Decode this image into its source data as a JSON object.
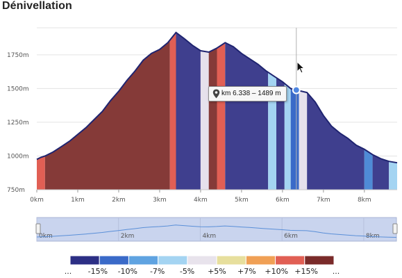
{
  "title": "Dénivellation",
  "tooltip": {
    "text": "km 6.338 – 1489 m",
    "icon": "map-pin-icon"
  },
  "chart_data": {
    "type": "area",
    "title": "Dénivellation",
    "xlabel": "",
    "ylabel": "",
    "xlim": [
      0,
      8.8
    ],
    "ylim": [
      750,
      1950
    ],
    "y_ticks": [
      {
        "v": 750,
        "label": "750m"
      },
      {
        "v": 1000,
        "label": "1000m"
      },
      {
        "v": 1250,
        "label": "1250m"
      },
      {
        "v": 1500,
        "label": "1500m"
      },
      {
        "v": 1750,
        "label": "1750m"
      }
    ],
    "x_ticks": [
      {
        "v": 0,
        "label": "0km"
      },
      {
        "v": 1,
        "label": "1km"
      },
      {
        "v": 2,
        "label": "2km"
      },
      {
        "v": 3,
        "label": "3km"
      },
      {
        "v": 4,
        "label": "4km"
      },
      {
        "v": 5,
        "label": "5km"
      },
      {
        "v": 6,
        "label": "6km"
      },
      {
        "v": 7,
        "label": "7km"
      },
      {
        "v": 8,
        "label": "8km"
      }
    ],
    "nav_ticks": [
      {
        "v": 0,
        "label": "0km"
      },
      {
        "v": 2,
        "label": "2km"
      },
      {
        "v": 4,
        "label": "4km"
      },
      {
        "v": 6,
        "label": "6km"
      },
      {
        "v": 8,
        "label": "8km"
      }
    ],
    "grid": true,
    "profile": [
      [
        0,
        975
      ],
      [
        0.1,
        990
      ],
      [
        0.2,
        1000
      ],
      [
        0.4,
        1030
      ],
      [
        0.6,
        1070
      ],
      [
        0.8,
        1110
      ],
      [
        1.0,
        1160
      ],
      [
        1.2,
        1210
      ],
      [
        1.4,
        1270
      ],
      [
        1.6,
        1330
      ],
      [
        1.8,
        1410
      ],
      [
        2.0,
        1480
      ],
      [
        2.2,
        1560
      ],
      [
        2.4,
        1630
      ],
      [
        2.6,
        1710
      ],
      [
        2.8,
        1760
      ],
      [
        3.0,
        1790
      ],
      [
        3.2,
        1840
      ],
      [
        3.4,
        1915
      ],
      [
        3.6,
        1870
      ],
      [
        3.8,
        1820
      ],
      [
        4.0,
        1780
      ],
      [
        4.2,
        1770
      ],
      [
        4.4,
        1800
      ],
      [
        4.6,
        1840
      ],
      [
        4.8,
        1810
      ],
      [
        5.0,
        1760
      ],
      [
        5.2,
        1720
      ],
      [
        5.4,
        1680
      ],
      [
        5.6,
        1630
      ],
      [
        5.8,
        1590
      ],
      [
        6.0,
        1550
      ],
      [
        6.2,
        1500
      ],
      [
        6.338,
        1489
      ],
      [
        6.6,
        1470
      ],
      [
        6.8,
        1400
      ],
      [
        7.0,
        1300
      ],
      [
        7.2,
        1220
      ],
      [
        7.4,
        1170
      ],
      [
        7.6,
        1130
      ],
      [
        7.8,
        1080
      ],
      [
        8.0,
        1050
      ],
      [
        8.2,
        1010
      ],
      [
        8.4,
        980
      ],
      [
        8.6,
        960
      ],
      [
        8.8,
        950
      ]
    ],
    "segments": [
      {
        "x0": 0,
        "x1": 0.2,
        "c": "#e15f54"
      },
      {
        "x0": 0.2,
        "x1": 3.25,
        "c": "#853a38"
      },
      {
        "x0": 3.25,
        "x1": 3.4,
        "c": "#e15f54"
      },
      {
        "x0": 3.4,
        "x1": 4.0,
        "c": "#3f3f8e"
      },
      {
        "x0": 4.0,
        "x1": 4.2,
        "c": "#e6e1ec"
      },
      {
        "x0": 4.2,
        "x1": 4.4,
        "c": "#853a38"
      },
      {
        "x0": 4.4,
        "x1": 4.6,
        "c": "#e15f54"
      },
      {
        "x0": 4.6,
        "x1": 5.65,
        "c": "#3f3f8e"
      },
      {
        "x0": 5.65,
        "x1": 5.85,
        "c": "#a4d4f2"
      },
      {
        "x0": 5.85,
        "x1": 6.05,
        "c": "#3f3f8e"
      },
      {
        "x0": 6.05,
        "x1": 6.2,
        "c": "#a4d4f2"
      },
      {
        "x0": 6.2,
        "x1": 6.4,
        "c": "#3a6ac8"
      },
      {
        "x0": 6.4,
        "x1": 6.6,
        "c": "#e6e1ec"
      },
      {
        "x0": 6.6,
        "x1": 8.0,
        "c": "#3f3f8e"
      },
      {
        "x0": 8.0,
        "x1": 8.2,
        "c": "#4f8bd6"
      },
      {
        "x0": 8.2,
        "x1": 8.6,
        "c": "#3f3f8e"
      },
      {
        "x0": 8.6,
        "x1": 8.8,
        "c": "#a4d4f2"
      }
    ],
    "legend": {
      "colors": [
        "#2c2f85",
        "#3a6ac8",
        "#5fa3e1",
        "#a4d4f2",
        "#e8e3ec",
        "#e7df9d",
        "#f0a055",
        "#e15f54",
        "#7a2b2a"
      ],
      "labels": [
        "...",
        "-15%",
        "-10%",
        "-7%",
        "-5%",
        "+5%",
        "+7%",
        "+10%",
        "+15%",
        "..."
      ]
    },
    "highlight": {
      "x": 6.338,
      "y": 1489
    }
  }
}
